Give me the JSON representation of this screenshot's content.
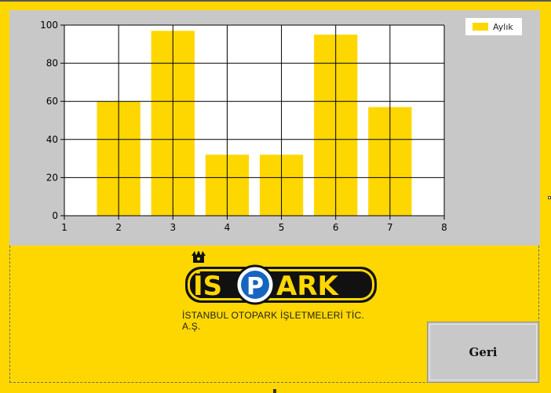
{
  "colors": {
    "background": "#FFD700",
    "chart_panel": "#C8C8C8",
    "bar": "#FFD700",
    "plot_area": "#FFFFFF",
    "grid": "#000000"
  },
  "chart_data": {
    "type": "bar",
    "title": "",
    "xlabel": "",
    "ylabel": "",
    "x": [
      2,
      3,
      4,
      5,
      6,
      7
    ],
    "series": [
      {
        "name": "Aylık",
        "values": [
          60,
          97,
          32,
          32,
          95,
          57
        ]
      }
    ],
    "xlim": [
      1,
      8
    ],
    "ylim": [
      0,
      100
    ],
    "x_ticks": [
      1,
      2,
      3,
      4,
      5,
      6,
      7,
      8
    ],
    "y_ticks": [
      0,
      20,
      40,
      60,
      80,
      100
    ],
    "grid": true,
    "legend_position": "top-right"
  },
  "legend": {
    "label": "Aylık"
  },
  "logo": {
    "text": "İSPARK",
    "subtitle": "İSTANBUL OTOPARK İŞLETMELERİ TİC. A.Ş."
  },
  "buttons": {
    "back_label": "Geri"
  }
}
